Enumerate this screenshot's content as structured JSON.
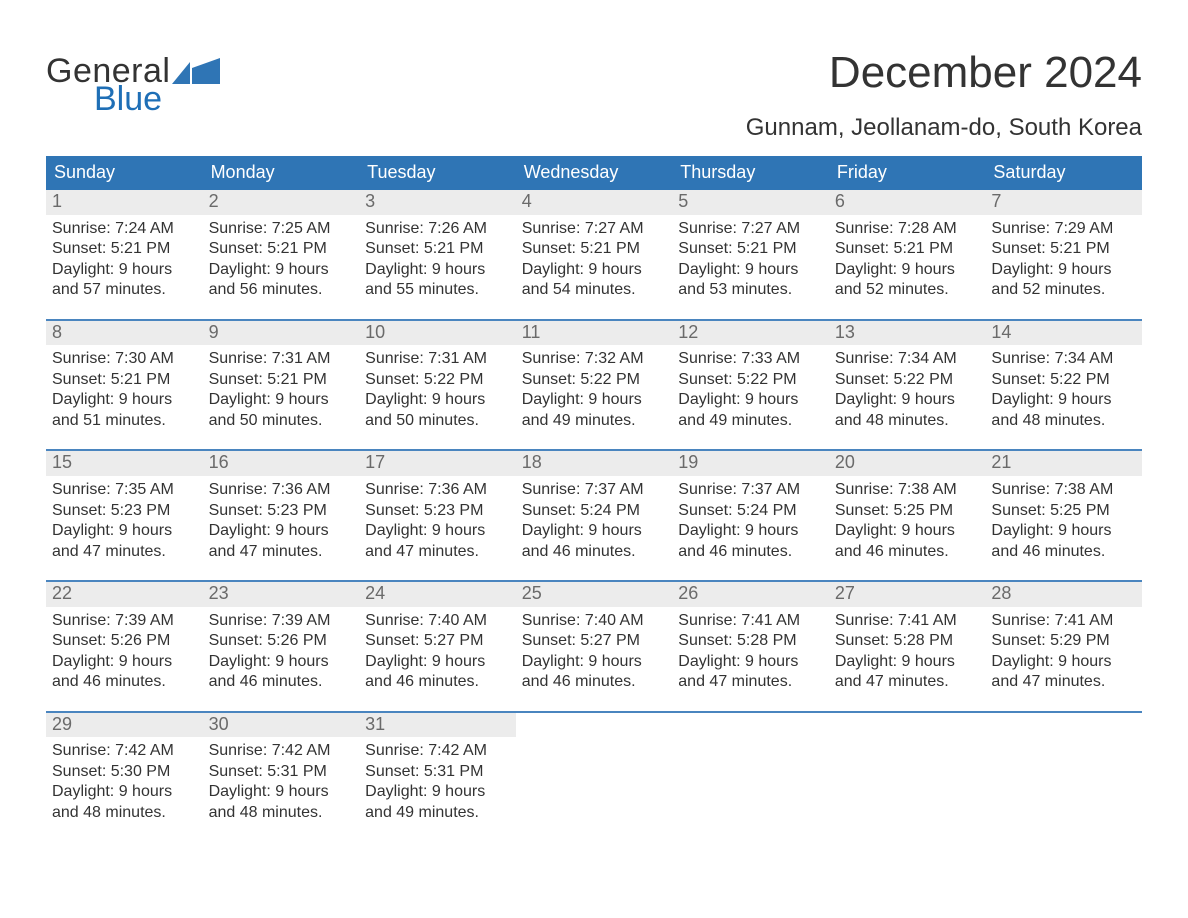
{
  "colors": {
    "accent": "#2f75b5",
    "logo_blue": "#1f6fb6",
    "daynum_bg": "#ececec",
    "daynum_color": "#6a6a6a",
    "body_text": "#333333",
    "row_border": "#4a85bf",
    "background": "#ffffff"
  },
  "logo": {
    "word1": "General",
    "word2": "Blue"
  },
  "title": "December 2024",
  "location": "Gunnam, Jeollanam-do, South Korea",
  "dow": [
    "Sunday",
    "Monday",
    "Tuesday",
    "Wednesday",
    "Thursday",
    "Friday",
    "Saturday"
  ],
  "weeks": [
    [
      {
        "n": "1",
        "sr": "Sunrise: 7:24 AM",
        "ss": "Sunset: 5:21 PM",
        "d1": "Daylight: 9 hours",
        "d2": "and 57 minutes."
      },
      {
        "n": "2",
        "sr": "Sunrise: 7:25 AM",
        "ss": "Sunset: 5:21 PM",
        "d1": "Daylight: 9 hours",
        "d2": "and 56 minutes."
      },
      {
        "n": "3",
        "sr": "Sunrise: 7:26 AM",
        "ss": "Sunset: 5:21 PM",
        "d1": "Daylight: 9 hours",
        "d2": "and 55 minutes."
      },
      {
        "n": "4",
        "sr": "Sunrise: 7:27 AM",
        "ss": "Sunset: 5:21 PM",
        "d1": "Daylight: 9 hours",
        "d2": "and 54 minutes."
      },
      {
        "n": "5",
        "sr": "Sunrise: 7:27 AM",
        "ss": "Sunset: 5:21 PM",
        "d1": "Daylight: 9 hours",
        "d2": "and 53 minutes."
      },
      {
        "n": "6",
        "sr": "Sunrise: 7:28 AM",
        "ss": "Sunset: 5:21 PM",
        "d1": "Daylight: 9 hours",
        "d2": "and 52 minutes."
      },
      {
        "n": "7",
        "sr": "Sunrise: 7:29 AM",
        "ss": "Sunset: 5:21 PM",
        "d1": "Daylight: 9 hours",
        "d2": "and 52 minutes."
      }
    ],
    [
      {
        "n": "8",
        "sr": "Sunrise: 7:30 AM",
        "ss": "Sunset: 5:21 PM",
        "d1": "Daylight: 9 hours",
        "d2": "and 51 minutes."
      },
      {
        "n": "9",
        "sr": "Sunrise: 7:31 AM",
        "ss": "Sunset: 5:21 PM",
        "d1": "Daylight: 9 hours",
        "d2": "and 50 minutes."
      },
      {
        "n": "10",
        "sr": "Sunrise: 7:31 AM",
        "ss": "Sunset: 5:22 PM",
        "d1": "Daylight: 9 hours",
        "d2": "and 50 minutes."
      },
      {
        "n": "11",
        "sr": "Sunrise: 7:32 AM",
        "ss": "Sunset: 5:22 PM",
        "d1": "Daylight: 9 hours",
        "d2": "and 49 minutes."
      },
      {
        "n": "12",
        "sr": "Sunrise: 7:33 AM",
        "ss": "Sunset: 5:22 PM",
        "d1": "Daylight: 9 hours",
        "d2": "and 49 minutes."
      },
      {
        "n": "13",
        "sr": "Sunrise: 7:34 AM",
        "ss": "Sunset: 5:22 PM",
        "d1": "Daylight: 9 hours",
        "d2": "and 48 minutes."
      },
      {
        "n": "14",
        "sr": "Sunrise: 7:34 AM",
        "ss": "Sunset: 5:22 PM",
        "d1": "Daylight: 9 hours",
        "d2": "and 48 minutes."
      }
    ],
    [
      {
        "n": "15",
        "sr": "Sunrise: 7:35 AM",
        "ss": "Sunset: 5:23 PM",
        "d1": "Daylight: 9 hours",
        "d2": "and 47 minutes."
      },
      {
        "n": "16",
        "sr": "Sunrise: 7:36 AM",
        "ss": "Sunset: 5:23 PM",
        "d1": "Daylight: 9 hours",
        "d2": "and 47 minutes."
      },
      {
        "n": "17",
        "sr": "Sunrise: 7:36 AM",
        "ss": "Sunset: 5:23 PM",
        "d1": "Daylight: 9 hours",
        "d2": "and 47 minutes."
      },
      {
        "n": "18",
        "sr": "Sunrise: 7:37 AM",
        "ss": "Sunset: 5:24 PM",
        "d1": "Daylight: 9 hours",
        "d2": "and 46 minutes."
      },
      {
        "n": "19",
        "sr": "Sunrise: 7:37 AM",
        "ss": "Sunset: 5:24 PM",
        "d1": "Daylight: 9 hours",
        "d2": "and 46 minutes."
      },
      {
        "n": "20",
        "sr": "Sunrise: 7:38 AM",
        "ss": "Sunset: 5:25 PM",
        "d1": "Daylight: 9 hours",
        "d2": "and 46 minutes."
      },
      {
        "n": "21",
        "sr": "Sunrise: 7:38 AM",
        "ss": "Sunset: 5:25 PM",
        "d1": "Daylight: 9 hours",
        "d2": "and 46 minutes."
      }
    ],
    [
      {
        "n": "22",
        "sr": "Sunrise: 7:39 AM",
        "ss": "Sunset: 5:26 PM",
        "d1": "Daylight: 9 hours",
        "d2": "and 46 minutes."
      },
      {
        "n": "23",
        "sr": "Sunrise: 7:39 AM",
        "ss": "Sunset: 5:26 PM",
        "d1": "Daylight: 9 hours",
        "d2": "and 46 minutes."
      },
      {
        "n": "24",
        "sr": "Sunrise: 7:40 AM",
        "ss": "Sunset: 5:27 PM",
        "d1": "Daylight: 9 hours",
        "d2": "and 46 minutes."
      },
      {
        "n": "25",
        "sr": "Sunrise: 7:40 AM",
        "ss": "Sunset: 5:27 PM",
        "d1": "Daylight: 9 hours",
        "d2": "and 46 minutes."
      },
      {
        "n": "26",
        "sr": "Sunrise: 7:41 AM",
        "ss": "Sunset: 5:28 PM",
        "d1": "Daylight: 9 hours",
        "d2": "and 47 minutes."
      },
      {
        "n": "27",
        "sr": "Sunrise: 7:41 AM",
        "ss": "Sunset: 5:28 PM",
        "d1": "Daylight: 9 hours",
        "d2": "and 47 minutes."
      },
      {
        "n": "28",
        "sr": "Sunrise: 7:41 AM",
        "ss": "Sunset: 5:29 PM",
        "d1": "Daylight: 9 hours",
        "d2": "and 47 minutes."
      }
    ],
    [
      {
        "n": "29",
        "sr": "Sunrise: 7:42 AM",
        "ss": "Sunset: 5:30 PM",
        "d1": "Daylight: 9 hours",
        "d2": "and 48 minutes."
      },
      {
        "n": "30",
        "sr": "Sunrise: 7:42 AM",
        "ss": "Sunset: 5:31 PM",
        "d1": "Daylight: 9 hours",
        "d2": "and 48 minutes."
      },
      {
        "n": "31",
        "sr": "Sunrise: 7:42 AM",
        "ss": "Sunset: 5:31 PM",
        "d1": "Daylight: 9 hours",
        "d2": "and 49 minutes."
      },
      {
        "empty": true
      },
      {
        "empty": true
      },
      {
        "empty": true
      },
      {
        "empty": true
      }
    ]
  ]
}
